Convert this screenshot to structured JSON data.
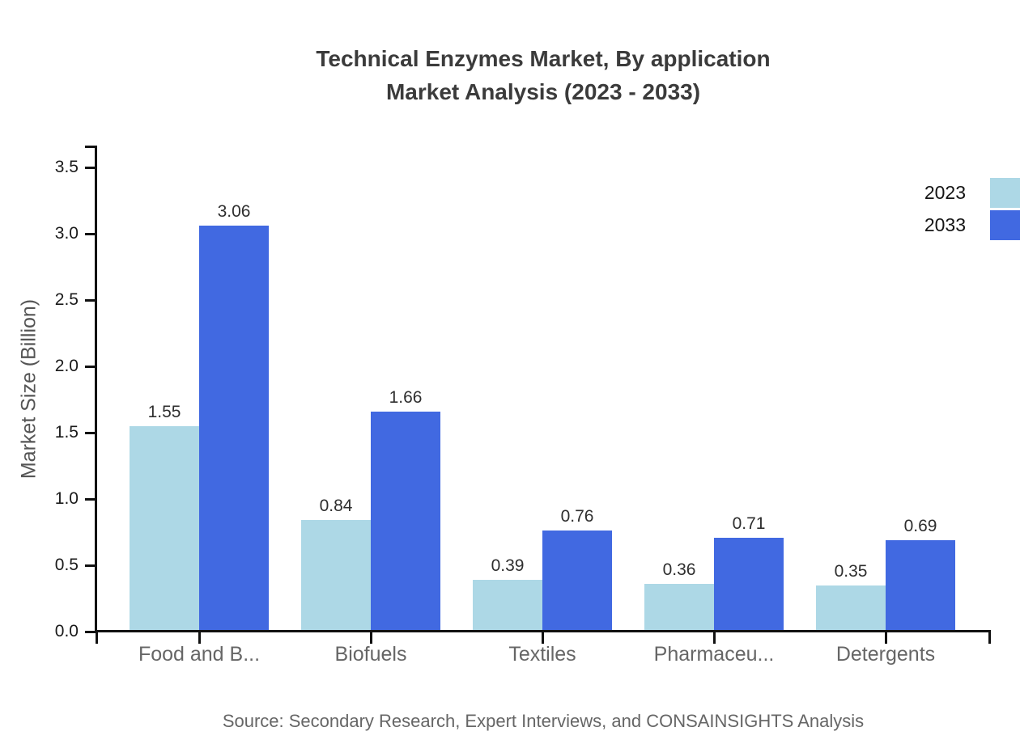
{
  "chart": {
    "title_line1": "Technical Enzymes Market, By application",
    "title_line2": "Market Analysis (2023 - 2033)",
    "y_axis_label": "Market Size (Billion)",
    "source": "Source: Secondary Research, Expert Interviews, and CONSAINSIGHTS Analysis"
  },
  "chart_data": {
    "type": "bar",
    "title": "Technical Enzymes Market, By application Market Analysis (2023 - 2033)",
    "xlabel": "",
    "ylabel": "Market Size (Billion)",
    "categories": [
      "Food and B...",
      "Biofuels",
      "Textiles",
      "Pharmaceu...",
      "Detergents"
    ],
    "series": [
      {
        "name": "2023",
        "color": "#add8e6",
        "values": [
          1.55,
          0.84,
          0.39,
          0.36,
          0.35
        ]
      },
      {
        "name": "2033",
        "color": "#4169e1",
        "values": [
          3.06,
          1.66,
          0.76,
          0.71,
          0.69
        ]
      }
    ],
    "yticks": [
      "0.0",
      "0.5",
      "1.0",
      "1.5",
      "2.0",
      "2.5",
      "3.0",
      "3.5"
    ],
    "ylim": [
      0,
      3.67
    ],
    "grid": false,
    "legend_position": "top-right",
    "value_labels": true,
    "value_label_format": "2-decimals"
  },
  "colors": {
    "axis": "#111111",
    "tick_label": "#1a1a1a",
    "value_label": "#2e2e2e",
    "category_label": "#666666",
    "title": "#3b3b3b",
    "y_axis_title": "#555555",
    "source": "#666666",
    "legend_text": "#151515",
    "background": "#ffffff",
    "series_2023": "#add8e6",
    "series_2033": "#4169e1"
  }
}
